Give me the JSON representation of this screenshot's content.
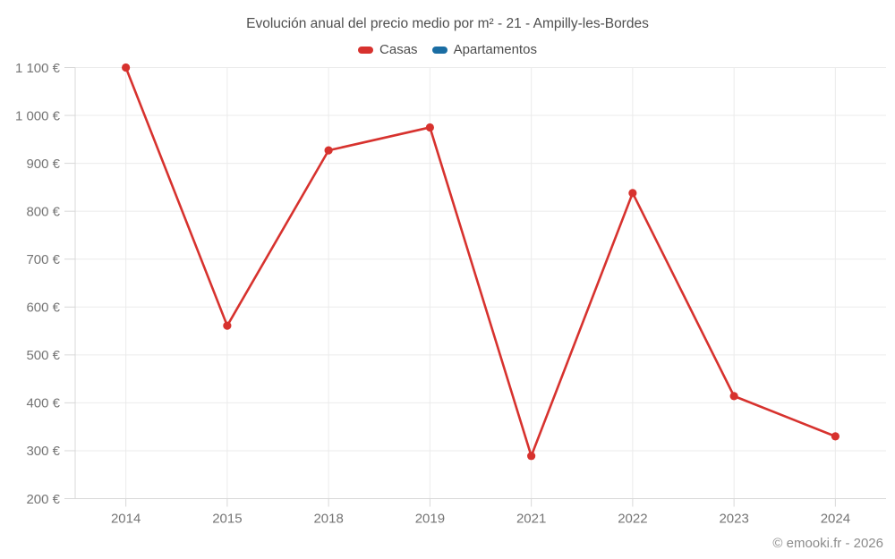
{
  "chart": {
    "title": "Evolución anual del precio medio por m² - 21 - Ampilly-les-Bordes"
  },
  "legend": {
    "items": [
      {
        "label": "Casas",
        "color": "#d7322e"
      },
      {
        "label": "Apartamentos",
        "color": "#1a6da3"
      }
    ]
  },
  "footer": {
    "credit": "© emooki.fr - 2026"
  },
  "chart_data": {
    "type": "line",
    "title": "Evolución anual del precio medio por m² - 21 - Ampilly-les-Bordes",
    "categories": [
      "2014",
      "2015",
      "2018",
      "2019",
      "2021",
      "2022",
      "2023",
      "2024"
    ],
    "series": [
      {
        "name": "Casas",
        "color": "#d7322e",
        "values": [
          1100,
          561,
          927,
          975,
          289,
          838,
          414,
          330
        ]
      },
      {
        "name": "Apartamentos",
        "color": "#1a6da3",
        "values": []
      }
    ],
    "ylim": [
      200,
      1100
    ],
    "ytick_values": [
      200,
      300,
      400,
      500,
      600,
      700,
      800,
      900,
      1000,
      1100
    ],
    "ytick_labels": [
      "200 €",
      "300 €",
      "400 €",
      "500 €",
      "600 €",
      "700 €",
      "800 €",
      "900 €",
      "1 000 €",
      "1 100 €"
    ],
    "xlabel": "",
    "ylabel": "",
    "grid": true,
    "legend_position": "top",
    "colors": {
      "grid_line": "#ebebeb",
      "axis_line": "#d8d8d8",
      "tick_label": "#757575"
    }
  }
}
